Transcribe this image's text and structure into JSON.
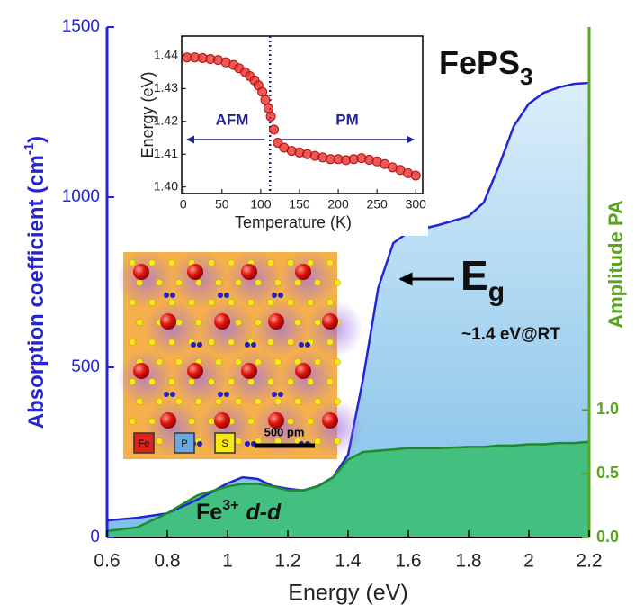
{
  "chart_data": [
    {
      "type": "line",
      "title_parts": [
        "FePS",
        "3"
      ],
      "xlabel": "Energy (eV)",
      "ylabel_parts": [
        "Absorption coefficient (cm",
        "-1",
        ")"
      ],
      "y2label": "Amplitude PA",
      "x": [
        0.6,
        0.7,
        0.8,
        0.9,
        1.0,
        1.05,
        1.1,
        1.15,
        1.2,
        1.25,
        1.3,
        1.35,
        1.4,
        1.45,
        1.5,
        1.55,
        1.6,
        1.7,
        1.8,
        1.85,
        1.9,
        1.95,
        2.0,
        2.05,
        2.1,
        2.15,
        2.2
      ],
      "series": [
        {
          "color": "#2424d6",
          "fill": "#a9d3ee",
          "values": [
            50,
            58,
            71,
            111,
            159,
            177,
            172,
            151,
            143,
            138,
            151,
            177,
            243,
            468,
            733,
            865,
            897,
            918,
            944,
            984,
            1090,
            1209,
            1275,
            1307,
            1323,
            1333,
            1336
          ]
        },
        {
          "color": "#1f8a2c",
          "fill": "#3fc079",
          "axis": "y2",
          "values": [
            0.05,
            0.08,
            0.19,
            0.33,
            0.4,
            0.42,
            0.42,
            0.4,
            0.37,
            0.37,
            0.4,
            0.47,
            0.61,
            0.67,
            0.68,
            0.69,
            0.7,
            0.7,
            0.71,
            0.71,
            0.72,
            0.72,
            0.73,
            0.73,
            0.74,
            0.74,
            0.75
          ]
        }
      ],
      "xlim": [
        0.6,
        2.2
      ],
      "xticks": [
        0.6,
        0.8,
        1.0,
        1.2,
        1.4,
        1.6,
        1.8,
        2.0,
        2.2
      ],
      "ylim": [
        0,
        1500
      ],
      "yticks": [
        0,
        500,
        1000,
        1500
      ],
      "y2lim": [
        0,
        4
      ],
      "y2ticks": [
        {
          "value": 0,
          "label": "0.0"
        },
        {
          "value": 0.5,
          "label": "0.5"
        },
        {
          "value": 1,
          "label": "1.0"
        }
      ],
      "annotations": {
        "gap_parts": [
          "E",
          "g"
        ],
        "gap_value": "~1.4 eV@RT",
        "dd_parts": [
          "Fe",
          "3+",
          "d-d"
        ]
      }
    },
    {
      "type": "scatter",
      "xlabel": "Temperature (K)",
      "ylabel": "Energy (eV)",
      "color": "#e8302a",
      "x": [
        5,
        15,
        25,
        35,
        45,
        55,
        65,
        72,
        80,
        86,
        92,
        97,
        102,
        106,
        110,
        113,
        117,
        122,
        130,
        140,
        150,
        160,
        170,
        180,
        190,
        200,
        210,
        220,
        230,
        240,
        250,
        260,
        270,
        280,
        290,
        300
      ],
      "values": [
        1.4395,
        1.4395,
        1.4393,
        1.439,
        1.4387,
        1.438,
        1.4372,
        1.4362,
        1.435,
        1.4338,
        1.4325,
        1.431,
        1.429,
        1.4265,
        1.424,
        1.4215,
        1.4175,
        1.4135,
        1.412,
        1.411,
        1.4105,
        1.41,
        1.4095,
        1.409,
        1.4085,
        1.4085,
        1.4082,
        1.4085,
        1.4088,
        1.4083,
        1.4078,
        1.407,
        1.406,
        1.4052,
        1.4042,
        1.4035
      ],
      "vline_x": 112,
      "xlim": [
        -2,
        309
      ],
      "xticks": [
        0,
        50,
        100,
        150,
        200,
        250,
        300
      ],
      "ylim": [
        1.398,
        1.446
      ],
      "yticks": [
        {
          "value": 1.4,
          "label": "1.40"
        },
        1.41,
        1.42,
        1.43,
        1.44
      ],
      "annotations": [
        "AFM",
        "PM"
      ]
    }
  ],
  "lattice_image": {
    "labels": [
      "Fe",
      "P",
      "S"
    ],
    "scale_bar": "500 pm"
  }
}
